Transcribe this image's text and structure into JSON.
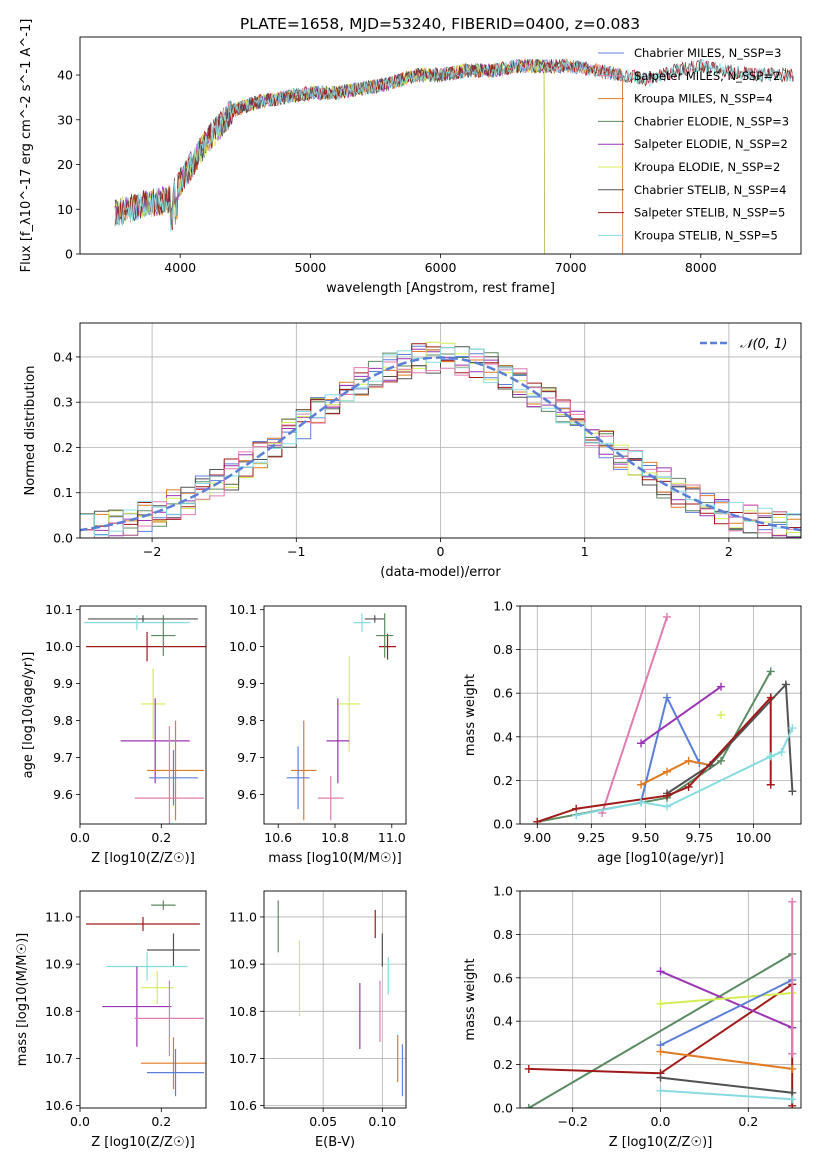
{
  "figure_title": "PLATE=1658, MJD=53240, FIBERID=0400, z=0.083",
  "colors": {
    "blue": "#5b7fd6",
    "orange": "#e07b24",
    "green": "#5c8a60",
    "purple": "#9b34b4",
    "lime": "#d4ec56",
    "gray": "#525252",
    "red": "#a01a1a",
    "pink": "#e07cb0",
    "cyan": "#87dbe0",
    "grid": "#b0b0b0"
  },
  "chart_data": [
    {
      "type": "line",
      "title": "PLATE=1658, MJD=53240, FIBERID=0400, z=0.083",
      "xlabel": "wavelength [Angstrom, rest frame]",
      "ylabel": "Flux [f_λ10^-17 erg cm^-2 s^-1 A^-1]",
      "xlim": [
        3230,
        8770
      ],
      "ylim": [
        0,
        48.5
      ],
      "xticks": [
        4000,
        5000,
        6000,
        7000,
        8000
      ],
      "yticks": [
        0,
        10,
        20,
        30,
        40
      ],
      "grid": false,
      "legend_position": "right",
      "continuum": {
        "x": [
          3500,
          3700,
          3900,
          4000,
          4200,
          4400,
          4600,
          4800,
          5000,
          5200,
          5400,
          5600,
          5800,
          6000,
          6200,
          6400,
          6600,
          6800,
          7000,
          7200,
          7400,
          7600,
          7800,
          8000,
          8200,
          8400
        ],
        "y": [
          9,
          11,
          12,
          16,
          25,
          32,
          34,
          35,
          36,
          36,
          37,
          38,
          40,
          40,
          41,
          41,
          42,
          42,
          42,
          41,
          40,
          39,
          41,
          42,
          41,
          40
        ]
      },
      "series": [
        {
          "name": "Chabrier MILES, N_SSP=3",
          "color": "blue",
          "xmax": 7400
        },
        {
          "name": "Salpeter MILES, N_SSP=2",
          "color": "pink",
          "xmax": 7400
        },
        {
          "name": "Kroupa MILES, N_SSP=4",
          "color": "orange",
          "xmax": 7400
        },
        {
          "name": "Chabrier ELODIE, N_SSP=3",
          "color": "green",
          "xmax": 6800
        },
        {
          "name": "Salpeter ELODIE, N_SSP=2",
          "color": "purple",
          "xmax": 6800
        },
        {
          "name": "Kroupa ELODIE, N_SSP=2",
          "color": "lime",
          "xmax": 6800
        },
        {
          "name": "Chabrier STELIB, N_SSP=4",
          "color": "gray",
          "xmax": 8770
        },
        {
          "name": "Salpeter STELIB, N_SSP=5",
          "color": "red",
          "xmax": 8770
        },
        {
          "name": "Kroupa STELIB, N_SSP=5",
          "color": "cyan",
          "xmax": 8770
        }
      ]
    },
    {
      "type": "histogram",
      "xlabel": "(data-model)/error",
      "ylabel": "Normed distribution",
      "xlim": [
        -2.5,
        2.5
      ],
      "ylim": [
        0,
        0.475
      ],
      "xticks": [
        -2,
        -1,
        0,
        1,
        2
      ],
      "yticks": [
        0.0,
        0.1,
        0.2,
        0.3,
        0.4
      ],
      "grid": true,
      "legend_position": "top-right",
      "reference_curve": {
        "name": "𝒩(0, 1)",
        "color": "blue",
        "style": "dashed"
      },
      "bin_width": 0.1,
      "series_colors": [
        "blue",
        "orange",
        "green",
        "purple",
        "lime",
        "gray",
        "red",
        "pink",
        "cyan"
      ]
    },
    {
      "type": "scatter",
      "panel": "age-vs-Z",
      "xlabel": "Z [log10(Z/Z☉)]",
      "ylabel": "age [log10(age/yr)]",
      "xlim": [
        0.0,
        0.31
      ],
      "ylim": [
        9.52,
        10.11
      ],
      "xticks": [
        0.0,
        0.2
      ],
      "yticks": [
        9.6,
        9.7,
        9.8,
        9.9,
        10.0,
        10.1
      ],
      "grid": false,
      "points": [
        {
          "x": 0.155,
          "y": 10.075,
          "xerr": 0.135,
          "yerr": 0.01,
          "color": "gray"
        },
        {
          "x": 0.14,
          "y": 10.065,
          "xerr": 0.13,
          "yerr": 0.02,
          "color": "cyan"
        },
        {
          "x": 0.165,
          "y": 10.0,
          "xerr": 0.15,
          "yerr": 0.04,
          "color": "red"
        },
        {
          "x": 0.205,
          "y": 10.03,
          "xerr": 0.03,
          "yerr": 0.055,
          "color": "green"
        },
        {
          "x": 0.18,
          "y": 9.845,
          "xerr": 0.03,
          "yerr": 0.095,
          "color": "lime"
        },
        {
          "x": 0.185,
          "y": 9.745,
          "xerr": 0.085,
          "yerr": 0.115,
          "color": "purple"
        },
        {
          "x": 0.235,
          "y": 9.665,
          "xerr": 0.07,
          "yerr": 0.135,
          "color": "orange"
        },
        {
          "x": 0.23,
          "y": 9.645,
          "xerr": 0.06,
          "yerr": 0.075,
          "color": "blue"
        },
        {
          "x": 0.22,
          "y": 9.59,
          "xerr": 0.085,
          "yerr": 0.195,
          "color": "pink"
        }
      ]
    },
    {
      "type": "scatter",
      "panel": "age-vs-mass",
      "xlabel": "mass [log10(M/M☉)]",
      "ylabel": "",
      "xlim": [
        10.55,
        11.05
      ],
      "ylim": [
        9.52,
        10.11
      ],
      "xticks": [
        10.6,
        10.8,
        11.0
      ],
      "yticks": [
        9.6,
        9.7,
        9.8,
        9.9,
        10.0,
        10.1
      ],
      "grid": false,
      "points": [
        {
          "x": 10.94,
          "y": 10.075,
          "xerr": 0.035,
          "yerr": 0.01,
          "color": "gray"
        },
        {
          "x": 10.895,
          "y": 10.065,
          "xerr": 0.03,
          "yerr": 0.025,
          "color": "cyan"
        },
        {
          "x": 10.985,
          "y": 10.0,
          "xerr": 0.03,
          "yerr": 0.035,
          "color": "red"
        },
        {
          "x": 10.975,
          "y": 10.03,
          "xerr": 0.03,
          "yerr": 0.06,
          "color": "green"
        },
        {
          "x": 10.85,
          "y": 9.845,
          "xerr": 0.04,
          "yerr": 0.13,
          "color": "lime"
        },
        {
          "x": 10.81,
          "y": 9.745,
          "xerr": 0.04,
          "yerr": 0.115,
          "color": "purple"
        },
        {
          "x": 10.69,
          "y": 9.665,
          "xerr": 0.045,
          "yerr": 0.135,
          "color": "orange"
        },
        {
          "x": 10.67,
          "y": 9.645,
          "xerr": 0.04,
          "yerr": 0.085,
          "color": "blue"
        },
        {
          "x": 10.785,
          "y": 9.59,
          "xerr": 0.045,
          "yerr": 0.06,
          "color": "pink"
        }
      ]
    },
    {
      "type": "line",
      "panel": "mass-weight-vs-age",
      "xlabel": "age [log10(age/yr)]",
      "ylabel": "mass weight",
      "xlim": [
        8.92,
        10.22
      ],
      "ylim": [
        0.0,
        1.0
      ],
      "xticks": [
        9.0,
        9.25,
        9.5,
        9.75,
        10.0
      ],
      "yticks": [
        0.0,
        0.2,
        0.4,
        0.6,
        0.8,
        1.0
      ],
      "grid": true,
      "series": [
        {
          "color": "pink",
          "x": [
            9.3,
            9.6
          ],
          "y": [
            0.05,
            0.95
          ]
        },
        {
          "color": "blue",
          "x": [
            9.48,
            9.6,
            9.75
          ],
          "y": [
            0.1,
            0.58,
            0.28
          ]
        },
        {
          "color": "purple",
          "x": [
            9.48,
            9.85
          ],
          "y": [
            0.37,
            0.63
          ]
        },
        {
          "color": "lime",
          "x": [
            9.85
          ],
          "y": [
            0.5
          ]
        },
        {
          "color": "orange",
          "x": [
            9.48,
            9.6,
            9.7,
            9.8
          ],
          "y": [
            0.18,
            0.24,
            0.29,
            0.27
          ]
        },
        {
          "color": "green",
          "x": [
            9.0,
            9.6,
            9.85,
            10.08
          ],
          "y": [
            0.01,
            0.12,
            0.29,
            0.7
          ]
        },
        {
          "color": "gray",
          "x": [
            9.6,
            9.8,
            10.15,
            10.18
          ],
          "y": [
            0.14,
            0.27,
            0.64,
            0.15
          ]
        },
        {
          "color": "red",
          "x": [
            9.0,
            9.18,
            9.6,
            9.7,
            10.08,
            10.08
          ],
          "y": [
            0.01,
            0.07,
            0.13,
            0.17,
            0.58,
            0.18
          ]
        },
        {
          "color": "cyan",
          "x": [
            9.18,
            9.48,
            9.6,
            10.08,
            10.13,
            10.18
          ],
          "y": [
            0.04,
            0.1,
            0.08,
            0.31,
            0.33,
            0.44
          ]
        }
      ]
    },
    {
      "type": "scatter",
      "panel": "mass-vs-Z",
      "xlabel": "Z [log10(Z/Z☉)]",
      "ylabel": "mass [log10(M/M☉)]",
      "xlim": [
        0.0,
        0.31
      ],
      "ylim": [
        10.595,
        11.055
      ],
      "xticks": [
        0.0,
        0.2
      ],
      "yticks": [
        10.6,
        10.7,
        10.8,
        10.9,
        11.0
      ],
      "grid": false,
      "points": [
        {
          "x": 0.155,
          "y": 10.985,
          "xerr": 0.14,
          "yerr": 0.015,
          "color": "red"
        },
        {
          "x": 0.205,
          "y": 11.025,
          "xerr": 0.03,
          "yerr": 0.01,
          "color": "green"
        },
        {
          "x": 0.23,
          "y": 10.93,
          "xerr": 0.065,
          "yerr": 0.035,
          "color": "gray"
        },
        {
          "x": 0.165,
          "y": 10.895,
          "xerr": 0.1,
          "yerr": 0.03,
          "color": "cyan"
        },
        {
          "x": 0.19,
          "y": 10.85,
          "xerr": 0.04,
          "yerr": 0.035,
          "color": "lime"
        },
        {
          "x": 0.14,
          "y": 10.81,
          "xerr": 0.085,
          "yerr": 0.085,
          "color": "purple"
        },
        {
          "x": 0.22,
          "y": 10.785,
          "xerr": 0.085,
          "yerr": 0.08,
          "color": "pink"
        },
        {
          "x": 0.23,
          "y": 10.69,
          "xerr": 0.08,
          "yerr": 0.055,
          "color": "orange"
        },
        {
          "x": 0.235,
          "y": 10.67,
          "xerr": 0.07,
          "yerr": 0.05,
          "color": "blue"
        }
      ]
    },
    {
      "type": "scatter",
      "panel": "mass-vs-EBV",
      "xlabel": "E(B-V)",
      "ylabel": "",
      "xlim": [
        0.0,
        0.12
      ],
      "ylim": [
        10.595,
        11.055
      ],
      "xticks": [
        0.05,
        0.1
      ],
      "yticks": [
        10.6,
        10.7,
        10.8,
        10.9,
        11.0
      ],
      "grid": true,
      "points": [
        {
          "x": 0.012,
          "y": 10.98,
          "yerr": 0.055,
          "color": "green"
        },
        {
          "x": 0.03,
          "y": 10.87,
          "yerr": 0.08,
          "color": "lime"
        },
        {
          "x": 0.081,
          "y": 10.79,
          "yerr": 0.07,
          "color": "purple"
        },
        {
          "x": 0.094,
          "y": 10.985,
          "yerr": 0.03,
          "color": "red"
        },
        {
          "x": 0.1,
          "y": 10.93,
          "yerr": 0.035,
          "color": "gray"
        },
        {
          "x": 0.098,
          "y": 10.8,
          "yerr": 0.065,
          "color": "pink"
        },
        {
          "x": 0.105,
          "y": 10.875,
          "yerr": 0.04,
          "color": "cyan"
        },
        {
          "x": 0.113,
          "y": 10.7,
          "yerr": 0.05,
          "color": "orange"
        },
        {
          "x": 0.117,
          "y": 10.675,
          "yerr": 0.055,
          "color": "blue"
        }
      ]
    },
    {
      "type": "line",
      "panel": "mass-weight-vs-Z",
      "xlabel": "Z [log10(Z/Z☉)]",
      "ylabel": "mass weight",
      "xlim": [
        -0.32,
        0.32
      ],
      "ylim": [
        0.0,
        1.0
      ],
      "xticks": [
        -0.2,
        0.0,
        0.2
      ],
      "yticks": [
        0.0,
        0.2,
        0.4,
        0.6,
        0.8,
        1.0
      ],
      "grid": true,
      "series": [
        {
          "color": "green",
          "x": [
            -0.3,
            0.3
          ],
          "y": [
            0.0,
            0.71
          ]
        },
        {
          "color": "red",
          "x": [
            -0.3,
            0.0,
            0.3,
            0.3
          ],
          "y": [
            0.18,
            0.16,
            0.57,
            0.01
          ]
        },
        {
          "color": "purple",
          "x": [
            0.0,
            0.3
          ],
          "y": [
            0.63,
            0.37
          ]
        },
        {
          "color": "lime",
          "x": [
            0.0,
            0.3
          ],
          "y": [
            0.48,
            0.53
          ]
        },
        {
          "color": "blue",
          "x": [
            0.0,
            0.3
          ],
          "y": [
            0.29,
            0.59
          ]
        },
        {
          "color": "orange",
          "x": [
            0.0,
            0.3
          ],
          "y": [
            0.26,
            0.18
          ]
        },
        {
          "color": "gray",
          "x": [
            0.0,
            0.3
          ],
          "y": [
            0.14,
            0.07
          ]
        },
        {
          "color": "cyan",
          "x": [
            0.0,
            0.3
          ],
          "y": [
            0.08,
            0.04
          ]
        },
        {
          "color": "pink",
          "x": [
            0.3,
            0.3
          ],
          "y": [
            0.95,
            0.25
          ]
        }
      ]
    }
  ]
}
